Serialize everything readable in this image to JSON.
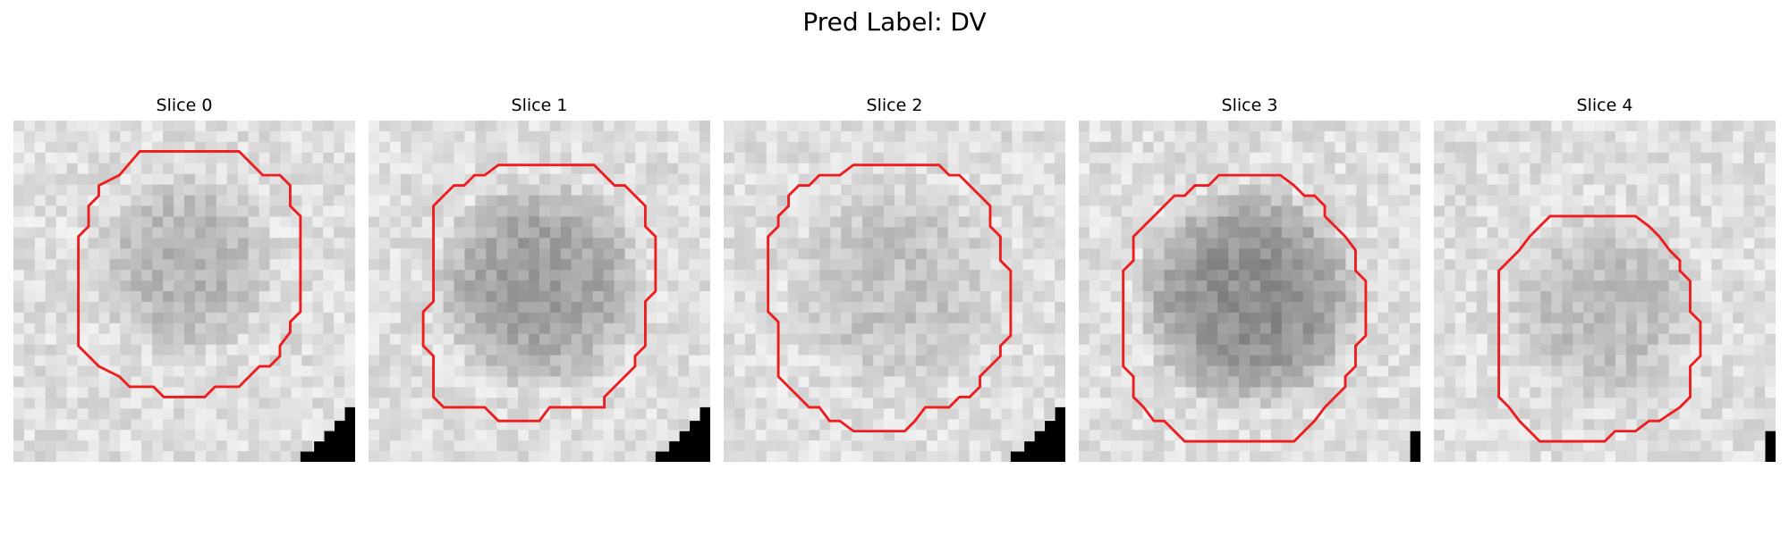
{
  "figure": {
    "title": "Pred Label: DV"
  },
  "contour_color": "#ee1c1c",
  "slices": [
    {
      "title": "Slice 0",
      "center": [
        0.5,
        0.42
      ],
      "radius": 0.28,
      "dark": 0.18,
      "contour": [
        [
          0.37,
          0.09
        ],
        [
          0.66,
          0.09
        ],
        [
          0.73,
          0.16
        ],
        [
          0.78,
          0.16
        ],
        [
          0.81,
          0.19
        ],
        [
          0.81,
          0.25
        ],
        [
          0.84,
          0.28
        ],
        [
          0.84,
          0.56
        ],
        [
          0.81,
          0.59
        ],
        [
          0.81,
          0.62
        ],
        [
          0.78,
          0.66
        ],
        [
          0.78,
          0.69
        ],
        [
          0.75,
          0.72
        ],
        [
          0.72,
          0.72
        ],
        [
          0.66,
          0.78
        ],
        [
          0.59,
          0.78
        ],
        [
          0.56,
          0.81
        ],
        [
          0.44,
          0.81
        ],
        [
          0.41,
          0.78
        ],
        [
          0.34,
          0.78
        ],
        [
          0.31,
          0.75
        ],
        [
          0.25,
          0.72
        ],
        [
          0.19,
          0.66
        ],
        [
          0.19,
          0.63
        ],
        [
          0.19,
          0.63
        ],
        [
          0.19,
          0.44
        ],
        [
          0.19,
          0.38
        ],
        [
          0.19,
          0.34
        ],
        [
          0.22,
          0.31
        ],
        [
          0.22,
          0.25
        ],
        [
          0.25,
          0.22
        ],
        [
          0.25,
          0.19
        ],
        [
          0.31,
          0.16
        ]
      ],
      "corner": "steps"
    },
    {
      "title": "Slice 1",
      "center": [
        0.5,
        0.48
      ],
      "radius": 0.32,
      "dark": 0.28,
      "contour": [
        [
          0.41,
          0.13
        ],
        [
          0.66,
          0.13
        ],
        [
          0.69,
          0.16
        ],
        [
          0.72,
          0.19
        ],
        [
          0.75,
          0.19
        ],
        [
          0.81,
          0.25
        ],
        [
          0.81,
          0.31
        ],
        [
          0.84,
          0.34
        ],
        [
          0.84,
          0.5
        ],
        [
          0.81,
          0.53
        ],
        [
          0.81,
          0.66
        ],
        [
          0.78,
          0.69
        ],
        [
          0.78,
          0.72
        ],
        [
          0.69,
          0.81
        ],
        [
          0.69,
          0.84
        ],
        [
          0.66,
          0.84
        ],
        [
          0.66,
          0.84
        ],
        [
          0.53,
          0.84
        ],
        [
          0.5,
          0.88
        ],
        [
          0.38,
          0.88
        ],
        [
          0.34,
          0.84
        ],
        [
          0.22,
          0.84
        ],
        [
          0.19,
          0.81
        ],
        [
          0.19,
          0.69
        ],
        [
          0.16,
          0.66
        ],
        [
          0.16,
          0.56
        ],
        [
          0.19,
          0.53
        ],
        [
          0.19,
          0.25
        ],
        [
          0.22,
          0.22
        ],
        [
          0.22,
          0.22
        ],
        [
          0.25,
          0.19
        ],
        [
          0.28,
          0.19
        ],
        [
          0.31,
          0.16
        ],
        [
          0.34,
          0.16
        ],
        [
          0.38,
          0.13
        ]
      ],
      "corner": "steps"
    },
    {
      "title": "Slice 2",
      "center": [
        0.5,
        0.48
      ],
      "radius": 0.32,
      "dark": 0.12,
      "contour": [
        [
          0.41,
          0.13
        ],
        [
          0.63,
          0.13
        ],
        [
          0.66,
          0.16
        ],
        [
          0.69,
          0.16
        ],
        [
          0.72,
          0.19
        ],
        [
          0.75,
          0.22
        ],
        [
          0.78,
          0.25
        ],
        [
          0.78,
          0.31
        ],
        [
          0.81,
          0.34
        ],
        [
          0.81,
          0.41
        ],
        [
          0.84,
          0.44
        ],
        [
          0.84,
          0.63
        ],
        [
          0.81,
          0.66
        ],
        [
          0.81,
          0.69
        ],
        [
          0.75,
          0.75
        ],
        [
          0.75,
          0.78
        ],
        [
          0.72,
          0.81
        ],
        [
          0.69,
          0.81
        ],
        [
          0.66,
          0.84
        ],
        [
          0.59,
          0.84
        ],
        [
          0.56,
          0.88
        ],
        [
          0.56,
          0.88
        ],
        [
          0.53,
          0.91
        ],
        [
          0.38,
          0.91
        ],
        [
          0.34,
          0.88
        ],
        [
          0.31,
          0.88
        ],
        [
          0.28,
          0.84
        ],
        [
          0.25,
          0.84
        ],
        [
          0.19,
          0.78
        ],
        [
          0.16,
          0.75
        ],
        [
          0.16,
          0.59
        ],
        [
          0.13,
          0.56
        ],
        [
          0.13,
          0.44
        ],
        [
          0.13,
          0.34
        ],
        [
          0.16,
          0.31
        ],
        [
          0.16,
          0.28
        ],
        [
          0.19,
          0.25
        ],
        [
          0.19,
          0.22
        ],
        [
          0.22,
          0.19
        ],
        [
          0.25,
          0.19
        ],
        [
          0.28,
          0.16
        ],
        [
          0.34,
          0.16
        ],
        [
          0.38,
          0.13
        ]
      ],
      "corner": "steps"
    },
    {
      "title": "Slice 3",
      "center": [
        0.5,
        0.52
      ],
      "radius": 0.34,
      "dark": 0.36,
      "contour": [
        [
          0.41,
          0.16
        ],
        [
          0.59,
          0.16
        ],
        [
          0.63,
          0.19
        ],
        [
          0.66,
          0.22
        ],
        [
          0.69,
          0.22
        ],
        [
          0.72,
          0.25
        ],
        [
          0.72,
          0.28
        ],
        [
          0.75,
          0.31
        ],
        [
          0.78,
          0.34
        ],
        [
          0.81,
          0.38
        ],
        [
          0.81,
          0.44
        ],
        [
          0.84,
          0.47
        ],
        [
          0.84,
          0.63
        ],
        [
          0.81,
          0.66
        ],
        [
          0.81,
          0.72
        ],
        [
          0.78,
          0.75
        ],
        [
          0.78,
          0.78
        ],
        [
          0.75,
          0.81
        ],
        [
          0.72,
          0.84
        ],
        [
          0.69,
          0.88
        ],
        [
          0.66,
          0.91
        ],
        [
          0.63,
          0.94
        ],
        [
          0.31,
          0.94
        ],
        [
          0.28,
          0.91
        ],
        [
          0.25,
          0.88
        ],
        [
          0.22,
          0.88
        ],
        [
          0.19,
          0.84
        ],
        [
          0.16,
          0.81
        ],
        [
          0.16,
          0.75
        ],
        [
          0.13,
          0.72
        ],
        [
          0.13,
          0.44
        ],
        [
          0.16,
          0.41
        ],
        [
          0.16,
          0.34
        ],
        [
          0.19,
          0.31
        ],
        [
          0.22,
          0.28
        ],
        [
          0.25,
          0.25
        ],
        [
          0.28,
          0.22
        ],
        [
          0.31,
          0.22
        ],
        [
          0.34,
          0.19
        ],
        [
          0.38,
          0.19
        ]
      ],
      "corner": "bar"
    },
    {
      "title": "Slice 4",
      "center": [
        0.5,
        0.55
      ],
      "radius": 0.29,
      "dark": 0.15,
      "contour": [
        [
          0.34,
          0.28
        ],
        [
          0.59,
          0.28
        ],
        [
          0.63,
          0.31
        ],
        [
          0.66,
          0.34
        ],
        [
          0.69,
          0.38
        ],
        [
          0.72,
          0.41
        ],
        [
          0.72,
          0.44
        ],
        [
          0.75,
          0.47
        ],
        [
          0.75,
          0.56
        ],
        [
          0.78,
          0.59
        ],
        [
          0.78,
          0.69
        ],
        [
          0.75,
          0.72
        ],
        [
          0.75,
          0.81
        ],
        [
          0.72,
          0.84
        ],
        [
          0.66,
          0.88
        ],
        [
          0.63,
          0.88
        ],
        [
          0.59,
          0.91
        ],
        [
          0.53,
          0.91
        ],
        [
          0.5,
          0.94
        ],
        [
          0.31,
          0.94
        ],
        [
          0.28,
          0.91
        ],
        [
          0.25,
          0.88
        ],
        [
          0.22,
          0.84
        ],
        [
          0.19,
          0.81
        ],
        [
          0.19,
          0.78
        ],
        [
          0.19,
          0.44
        ],
        [
          0.19,
          0.44
        ],
        [
          0.22,
          0.41
        ],
        [
          0.25,
          0.38
        ],
        [
          0.28,
          0.34
        ],
        [
          0.31,
          0.31
        ],
        [
          0.31,
          0.31
        ]
      ],
      "corner": "bar"
    }
  ]
}
